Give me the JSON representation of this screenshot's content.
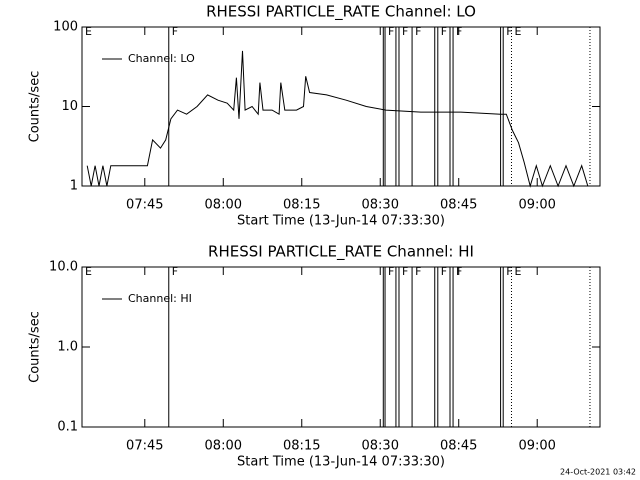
{
  "chart_data": [
    {
      "type": "line",
      "title": "RHESSI PARTICLE_RATE Channel: LO",
      "xlabel": "Start Time (13-Jun-14 07:33:30)",
      "ylabel": "Counts/sec",
      "log_y": true,
      "legend": "upper left",
      "xlim": [
        "07:33",
        "09:12"
      ],
      "xticks": [
        "07:45",
        "08:00",
        "08:15",
        "08:30",
        "08:45",
        "09:00"
      ],
      "ylim": [
        1,
        100
      ],
      "yticks": [
        1,
        10,
        100
      ],
      "x": [
        "07:34:00",
        "07:34:45",
        "07:35:30",
        "07:36:15",
        "07:37:00",
        "07:37:45",
        "07:38:30",
        "07:45:30",
        "07:46:30",
        "07:48:00",
        "07:49:00",
        "07:50:00",
        "07:51:15",
        "07:53:00",
        "07:55:00",
        "07:57:00",
        "07:59:00",
        "08:00:45",
        "08:02:00",
        "08:02:30",
        "08:03:00",
        "08:03:40",
        "08:04:10",
        "08:05:30",
        "08:06:40",
        "08:07:00",
        "08:07:35",
        "08:09:20",
        "08:10:40",
        "08:11:00",
        "08:11:45",
        "08:14:00",
        "08:15:20",
        "08:15:45",
        "08:16:30",
        "08:19:45",
        "08:23:30",
        "08:27:20",
        "08:31:05",
        "08:37:45",
        "08:45:25",
        "08:53:00",
        "08:54:05",
        "08:55:15",
        "08:56:25",
        "08:57:30",
        "08:58:40",
        "08:59:50",
        "09:01:00",
        "09:02:30",
        "09:04:00",
        "09:05:30",
        "09:07:00",
        "09:08:30",
        "09:09:40"
      ],
      "series": [
        {
          "name": "Channel: LO",
          "color": "#000000",
          "values": [
            1.8,
            1,
            1.8,
            1,
            1.8,
            1,
            1.8,
            1.8,
            3.8,
            3,
            3.8,
            7,
            9,
            8,
            10,
            14,
            12,
            11,
            9,
            23,
            7,
            50,
            9,
            10,
            8,
            20,
            9,
            9,
            8,
            20,
            9,
            9,
            10,
            24,
            15,
            14,
            12,
            10,
            9,
            8.5,
            8.5,
            8,
            8,
            5,
            3.5,
            2,
            1,
            1.8,
            1,
            1.8,
            1,
            1.8,
            1,
            1.8,
            1
          ]
        }
      ],
      "markers": [
        {
          "x": "07:33",
          "label": "E"
        },
        {
          "x": "07:49:35",
          "label": "F",
          "style": "solid"
        },
        {
          "x": "08:30:35",
          "style": "solid"
        },
        {
          "x": "08:30:55",
          "label": "F",
          "style": "solid"
        },
        {
          "x": "08:33:00",
          "style": "solid"
        },
        {
          "x": "08:33:35",
          "label": "F",
          "style": "solid"
        },
        {
          "x": "08:36:05",
          "label": "F",
          "style": "solid"
        },
        {
          "x": "08:40:25",
          "style": "solid"
        },
        {
          "x": "08:41:00",
          "label": "F",
          "style": "solid"
        },
        {
          "x": "08:43:20",
          "style": "solid"
        },
        {
          "x": "08:43:55",
          "label": "F",
          "style": "solid"
        },
        {
          "x": "08:53:00",
          "style": "solid"
        },
        {
          "x": "08:53:30",
          "label": "F",
          "style": "solid"
        },
        {
          "x": "08:55:05",
          "label": "E",
          "style": "dotted"
        },
        {
          "x": "09:10:05",
          "style": "dotted"
        }
      ]
    },
    {
      "type": "line",
      "title": "RHESSI PARTICLE_RATE Channel: HI",
      "xlabel": "Start Time (13-Jun-14 07:33:30)",
      "ylabel": "Counts/sec",
      "log_y": true,
      "legend": "upper left",
      "xlim": [
        "07:33",
        "09:12"
      ],
      "xticks": [
        "07:45",
        "08:00",
        "08:15",
        "08:30",
        "08:45",
        "09:00"
      ],
      "ylim": [
        0.1,
        10
      ],
      "yticks": [
        0.1,
        {
          "value": 1,
          "label": "1.0"
        },
        {
          "value": 10,
          "label": "10.0"
        }
      ],
      "x": [],
      "series": [
        {
          "name": "Channel: HI",
          "color": "#000000",
          "values": []
        }
      ],
      "markers": [
        {
          "x": "07:33",
          "label": "E"
        },
        {
          "x": "07:49:35",
          "label": "F",
          "style": "solid"
        },
        {
          "x": "08:30:35",
          "style": "solid"
        },
        {
          "x": "08:30:55",
          "label": "F",
          "style": "solid"
        },
        {
          "x": "08:33:00",
          "style": "solid"
        },
        {
          "x": "08:33:35",
          "label": "F",
          "style": "solid"
        },
        {
          "x": "08:36:05",
          "label": "F",
          "style": "solid"
        },
        {
          "x": "08:40:25",
          "style": "solid"
        },
        {
          "x": "08:41:00",
          "label": "F",
          "style": "solid"
        },
        {
          "x": "08:43:20",
          "style": "solid"
        },
        {
          "x": "08:43:55",
          "label": "F",
          "style": "solid"
        },
        {
          "x": "08:53:00",
          "style": "solid"
        },
        {
          "x": "08:53:30",
          "label": "F",
          "style": "solid"
        },
        {
          "x": "08:55:05",
          "label": "E",
          "style": "dotted"
        },
        {
          "x": "09:10:05",
          "style": "dotted"
        }
      ]
    }
  ],
  "footer": "24-Oct-2021 03:42"
}
